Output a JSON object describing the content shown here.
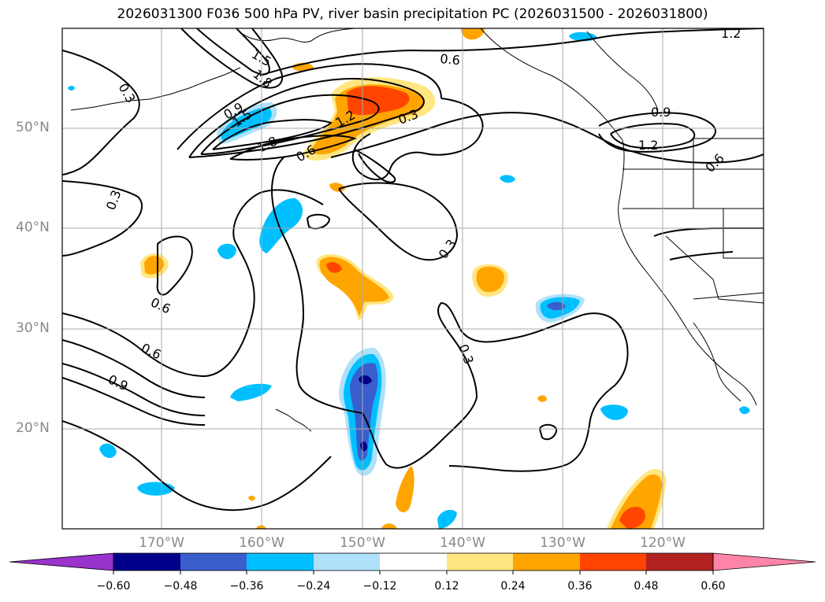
{
  "title": "2026031300 F036 500 hPa PV, river basin precipitation PC (2026031500 - 2026031800)",
  "map": {
    "lat_ticks": [
      "50°N",
      "40°N",
      "30°N",
      "20°N"
    ],
    "lon_ticks": [
      "170°W",
      "160°W",
      "150°W",
      "140°W",
      "130°W",
      "120°W"
    ],
    "contour_labels": [
      "0.3",
      "0.6",
      "0.9",
      "1.2",
      "1.5",
      "1.8",
      "0.9",
      "1.5",
      "1.8",
      "0.6",
      "1.2",
      "0.3",
      "0.6",
      "0.9",
      "1.2",
      "0.3",
      "0.6",
      "0.3",
      "0.3",
      "0.6",
      "0.9",
      "0.3",
      "0.3",
      "0.6"
    ]
  },
  "colorbar": {
    "tick_labels": [
      "−0.60",
      "−0.48",
      "−0.36",
      "−0.24",
      "−0.12",
      "0.12",
      "0.24",
      "0.36",
      "0.48",
      "0.60"
    ],
    "colors": [
      "#9933cc",
      "#00008b",
      "#3a5fcd",
      "#00bfff",
      "#afe1fa",
      "#ffffff",
      "#ffe680",
      "#ffa500",
      "#ff4500",
      "#b22222",
      "#ff85a8"
    ]
  }
}
